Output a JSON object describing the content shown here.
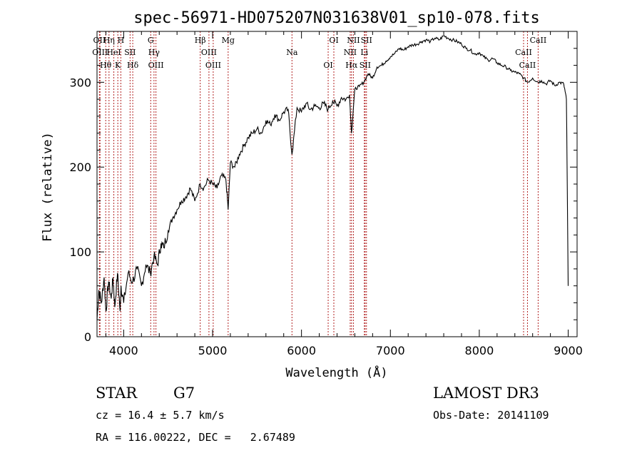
{
  "chart_data": {
    "type": "line",
    "title": "spec-56971-HD075207N031638V01_sp10-078.fits",
    "xlabel": "Wavelength (Å)",
    "ylabel": "Flux (relative)",
    "xlim": [
      3700,
      9100
    ],
    "ylim": [
      0,
      360
    ],
    "xticks": [
      4000,
      5000,
      6000,
      7000,
      8000,
      9000
    ],
    "yticks": [
      0,
      100,
      200,
      300
    ],
    "grid": false,
    "series": [
      {
        "name": "spectrum",
        "x": [
          3700,
          3720,
          3750,
          3780,
          3800,
          3830,
          3860,
          3880,
          3900,
          3930,
          3960,
          3970,
          4000,
          4050,
          4100,
          4150,
          4200,
          4250,
          4300,
          4340,
          4380,
          4420,
          4450,
          4500,
          4550,
          4600,
          4650,
          4700,
          4750,
          4800,
          4861,
          4900,
          4950,
          5000,
          5050,
          5100,
          5150,
          5175,
          5200,
          5250,
          5300,
          5350,
          5400,
          5450,
          5500,
          5550,
          5600,
          5650,
          5700,
          5750,
          5800,
          5850,
          5893,
          5950,
          6000,
          6050,
          6100,
          6150,
          6200,
          6250,
          6300,
          6350,
          6400,
          6450,
          6500,
          6540,
          6563,
          6600,
          6650,
          6700,
          6750,
          6800,
          6850,
          6900,
          6950,
          7000,
          7050,
          7100,
          7150,
          7200,
          7250,
          7300,
          7350,
          7400,
          7450,
          7500,
          7550,
          7600,
          7650,
          7700,
          7750,
          7800,
          7850,
          7900,
          7950,
          8000,
          8050,
          8100,
          8150,
          8200,
          8250,
          8300,
          8350,
          8400,
          8450,
          8500,
          8542,
          8600,
          8662,
          8700,
          8750,
          8800,
          8850,
          8900,
          8950,
          8980,
          9000
        ],
        "y": [
          20,
          55,
          40,
          70,
          30,
          65,
          45,
          70,
          35,
          75,
          30,
          60,
          40,
          75,
          65,
          80,
          60,
          85,
          75,
          95,
          85,
          110,
          105,
          125,
          140,
          150,
          160,
          165,
          175,
          160,
          180,
          175,
          185,
          180,
          175,
          190,
          185,
          150,
          205,
          200,
          215,
          225,
          235,
          240,
          245,
          240,
          255,
          250,
          262,
          255,
          265,
          268,
          215,
          270,
          265,
          275,
          268,
          272,
          270,
          275,
          268,
          278,
          272,
          282,
          280,
          285,
          240,
          292,
          295,
          300,
          310,
          305,
          318,
          320,
          325,
          330,
          334,
          340,
          338,
          342,
          344,
          345,
          348,
          350,
          348,
          352,
          350,
          355,
          352,
          350,
          348,
          345,
          340,
          338,
          333,
          335,
          330,
          326,
          328,
          323,
          320,
          318,
          314,
          312,
          310,
          305,
          300,
          305,
          300,
          302,
          298,
          302,
          296,
          300,
          298,
          280,
          60
        ]
      }
    ],
    "lines": [
      {
        "x": 3727,
        "label": "OII"
      },
      {
        "x": 3734,
        "label": "OIII"
      },
      {
        "x": 3798,
        "label": "Hθ"
      },
      {
        "x": 3835,
        "label": "Hη"
      },
      {
        "x": 3889,
        "label": "HeI"
      },
      {
        "x": 3934,
        "label": "K"
      },
      {
        "x": 3968,
        "label": "H"
      },
      {
        "x": 4072,
        "label": "SII"
      },
      {
        "x": 4102,
        "label": "Hδ"
      },
      {
        "x": 4304,
        "label": "G"
      },
      {
        "x": 4341,
        "label": "Hγ"
      },
      {
        "x": 4363,
        "label": "OIII"
      },
      {
        "x": 4861,
        "label": "Hβ"
      },
      {
        "x": 4959,
        "label": "OIII"
      },
      {
        "x": 5007,
        "label": "OIII"
      },
      {
        "x": 5175,
        "label": "Mg"
      },
      {
        "x": 5893,
        "label": "Na"
      },
      {
        "x": 6300,
        "label": "OI"
      },
      {
        "x": 6364,
        "label": "OI"
      },
      {
        "x": 6548,
        "label": "NII"
      },
      {
        "x": 6563,
        "label": "Hα"
      },
      {
        "x": 6584,
        "label": "NII"
      },
      {
        "x": 6707,
        "label": "Li"
      },
      {
        "x": 6716,
        "label": "SII"
      },
      {
        "x": 6731,
        "label": "SII"
      },
      {
        "x": 8498,
        "label": "CaII"
      },
      {
        "x": 8542,
        "label": "CaII"
      },
      {
        "x": 8662,
        "label": "CaII"
      }
    ]
  },
  "info": {
    "object_class": "STAR",
    "subclass": "G7",
    "survey": "LAMOST DR3",
    "redshift": "cz = 16.4 ± 5.7 km/s",
    "obs_date": "Obs-Date: 20141109",
    "coords": "RA = 116.00222, DEC =   2.67489"
  },
  "colors": {
    "line_marker": "#b22222",
    "spectrum": "#000000"
  }
}
